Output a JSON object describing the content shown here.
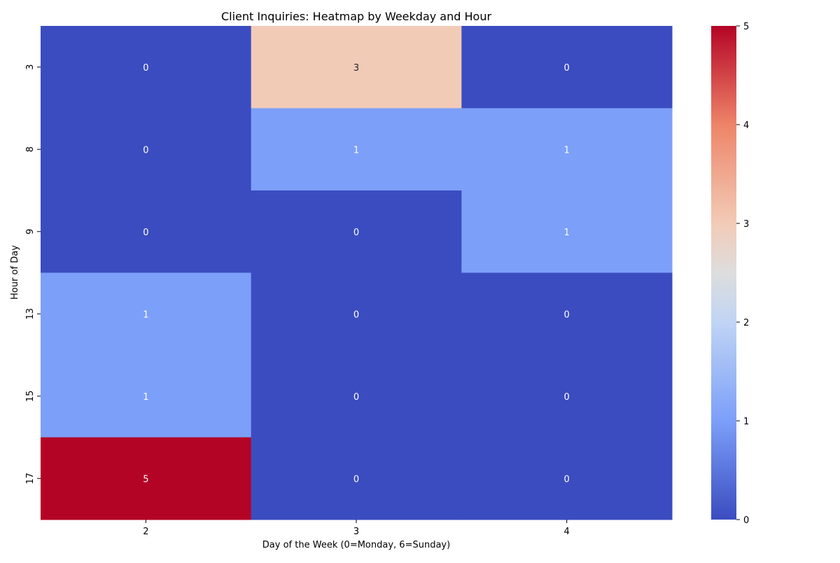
{
  "chart_data": {
    "type": "heatmap",
    "title": "Client Inquiries: Heatmap by Weekday and Hour",
    "xlabel": "Day of the Week (0=Monday, 6=Sunday)",
    "ylabel": "Hour of Day",
    "x_categories": [
      "2",
      "3",
      "4"
    ],
    "y_categories": [
      "3",
      "8",
      "9",
      "13",
      "15",
      "17"
    ],
    "values": [
      [
        0,
        3,
        0
      ],
      [
        0,
        1,
        1
      ],
      [
        0,
        0,
        1
      ],
      [
        1,
        0,
        0
      ],
      [
        1,
        0,
        0
      ],
      [
        5,
        0,
        0
      ]
    ],
    "colorbar": {
      "range": [
        0,
        5
      ],
      "ticks": [
        "0",
        "1",
        "2",
        "3",
        "4",
        "5"
      ]
    },
    "colormap": "coolwarm",
    "annotate": true
  }
}
